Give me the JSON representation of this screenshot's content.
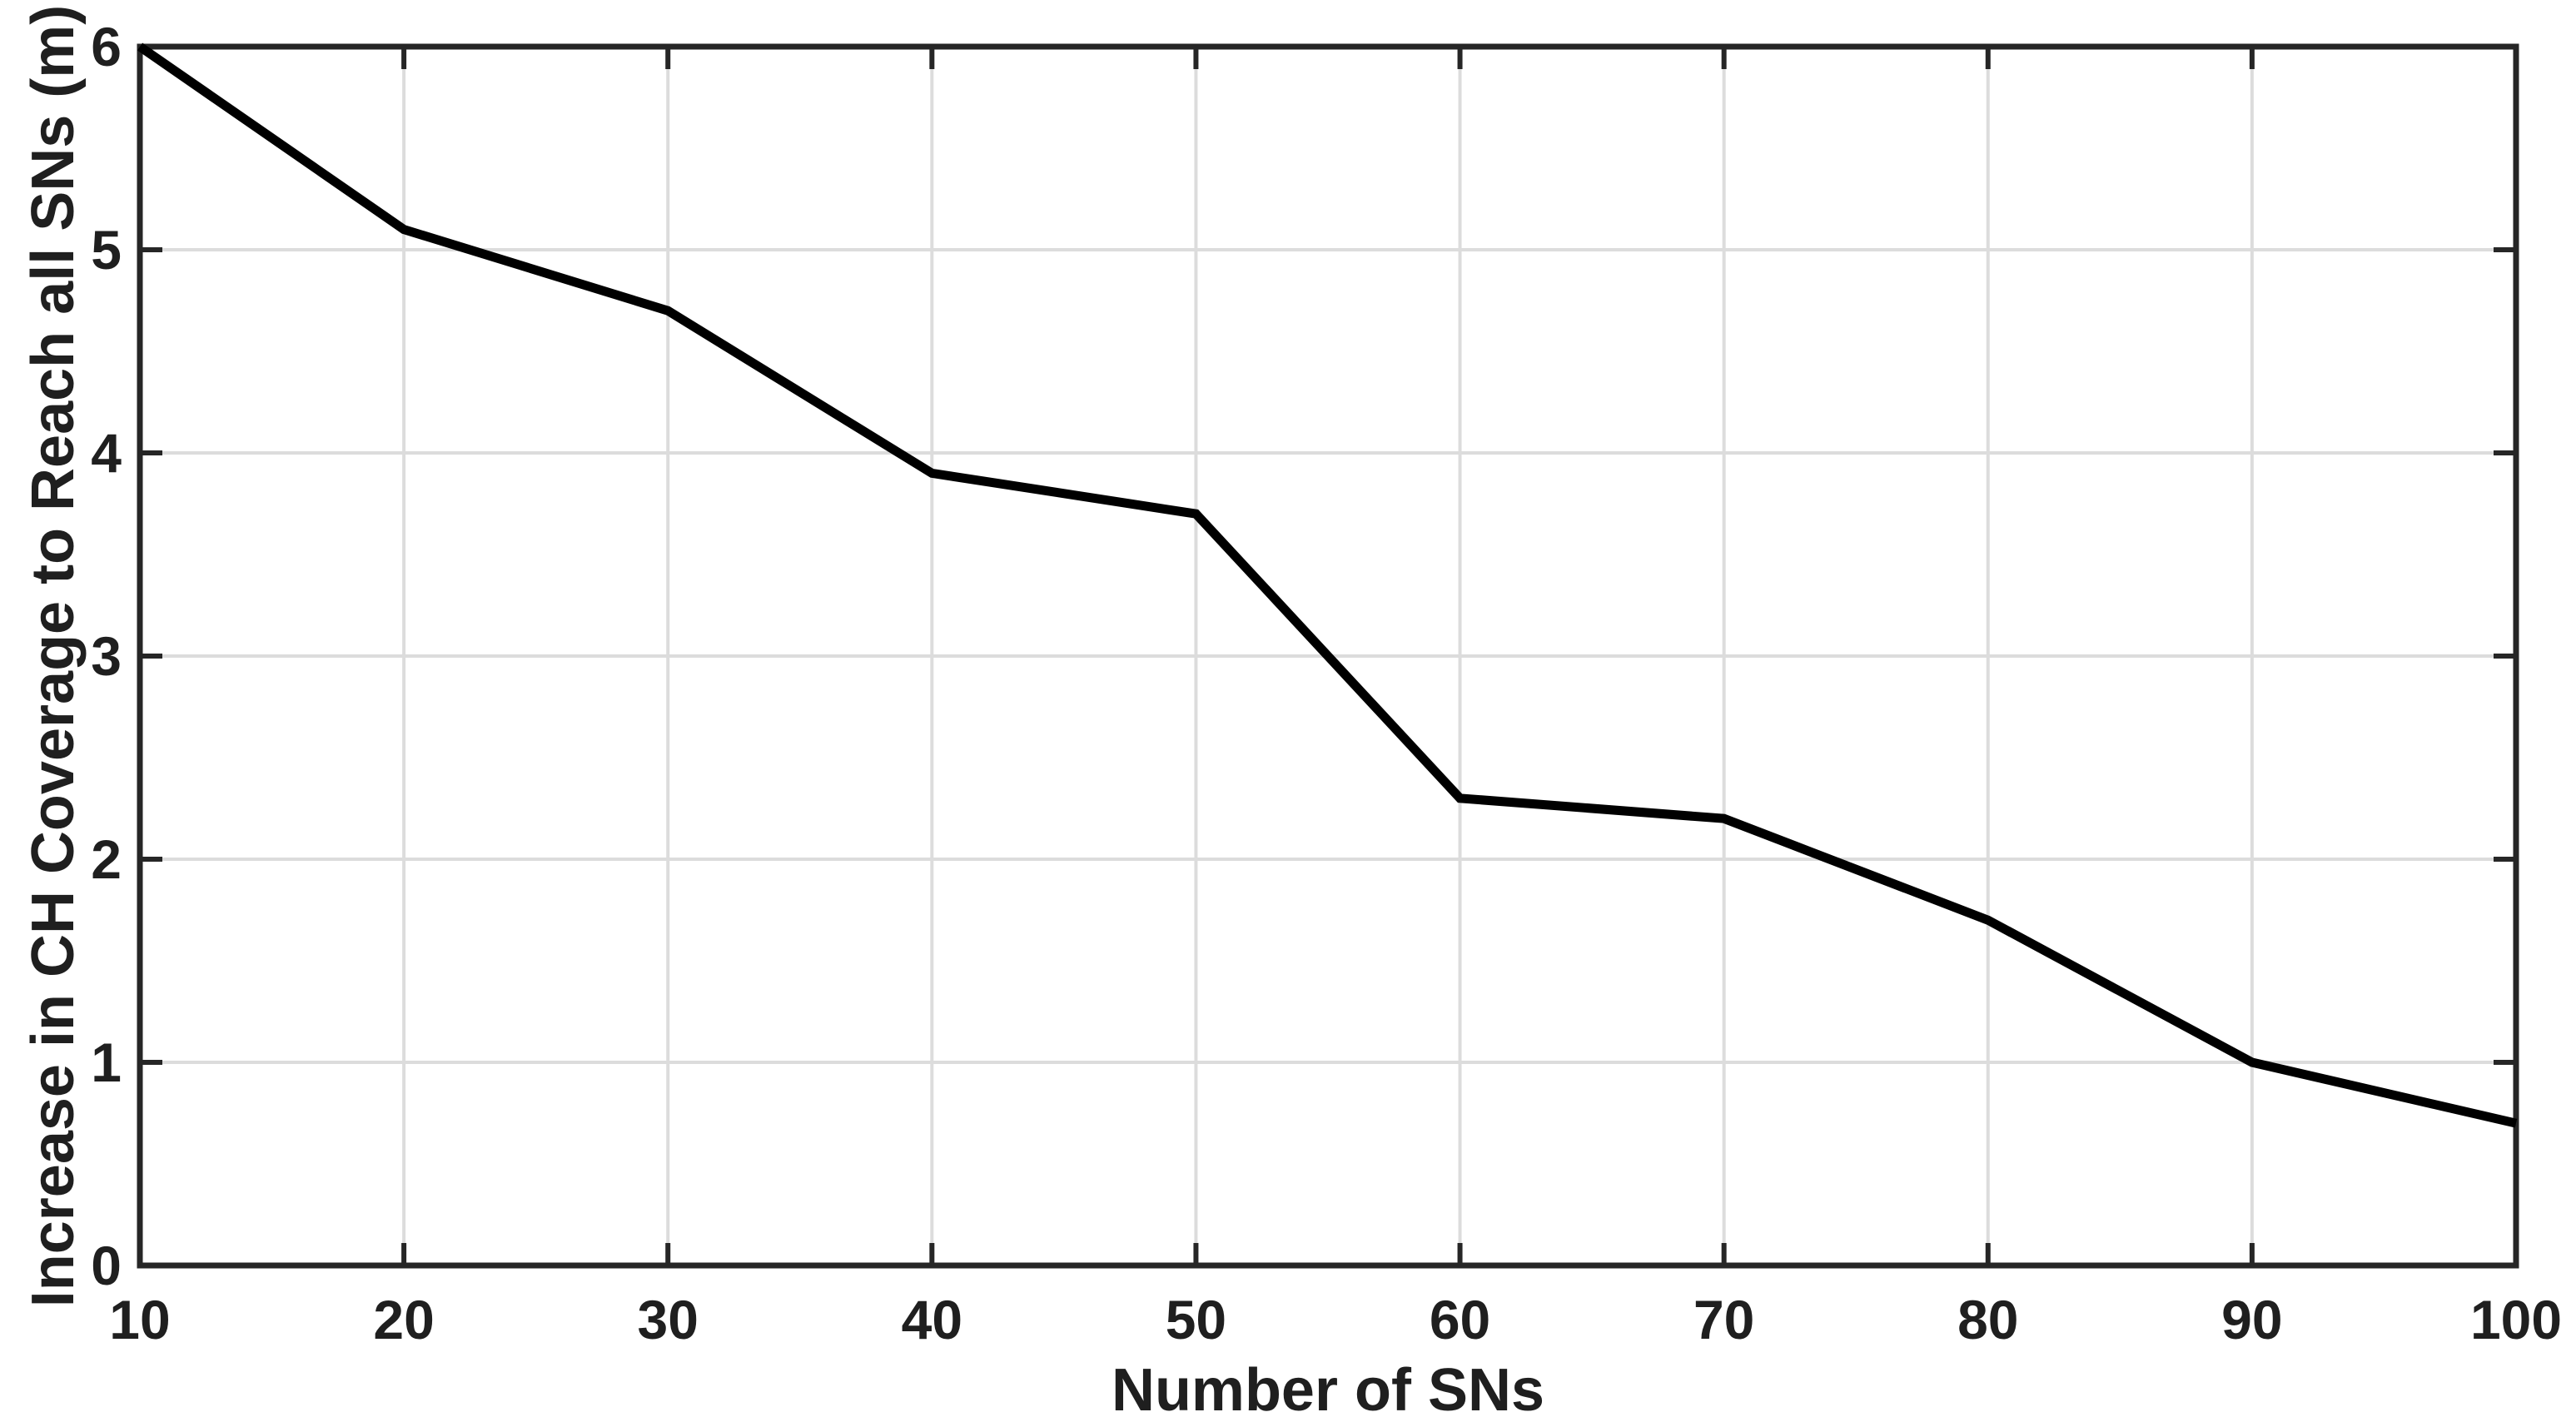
{
  "chart_data": {
    "type": "line",
    "x": [
      10,
      20,
      30,
      40,
      50,
      60,
      70,
      80,
      90,
      100
    ],
    "series": [
      {
        "name": "increase-in-ch-coverage",
        "values": [
          6.0,
          5.1,
          4.7,
          3.9,
          3.7,
          2.3,
          2.2,
          1.7,
          1.0,
          0.7
        ],
        "color": "#000000",
        "linewidth": 11
      }
    ],
    "title": "",
    "xlabel": "Number of SNs",
    "ylabel": "Increase in CH Coverage to Reach all SNs (m)",
    "xlim": [
      10,
      100
    ],
    "ylim": [
      0,
      6
    ],
    "xticks": [
      10,
      20,
      30,
      40,
      50,
      60,
      70,
      80,
      90,
      100
    ],
    "xtick_labels": [
      "10",
      "20",
      "30",
      "40",
      "50",
      "60",
      "70",
      "80",
      "90",
      "100"
    ],
    "yticks": [
      0,
      1,
      2,
      3,
      4,
      5,
      6
    ],
    "ytick_labels": [
      "0",
      "1",
      "2",
      "3",
      "4",
      "5",
      "6"
    ],
    "grid": true,
    "legend": "none",
    "box": true
  },
  "styles": {
    "axis_color": "#262626",
    "text_color": "#1f1f1f",
    "grid_color": "#dcdcdc",
    "line_color": "#000000",
    "background": "#ffffff"
  }
}
